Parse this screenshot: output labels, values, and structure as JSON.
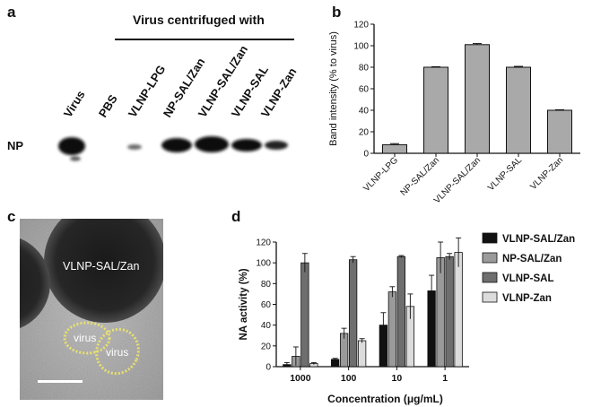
{
  "panel_a": {
    "label": "a",
    "header": "Virus centrifuged with",
    "lanes": [
      "Virus",
      "PBS",
      "VLNP-LPG",
      "NP-SAL/Zan",
      "VLNP-SAL/Zan",
      "VLNP-SAL",
      "VLNP-Zan"
    ],
    "row_label": "NP"
  },
  "panel_c": {
    "label": "c",
    "particle_label": "VLNP-SAL/Zan",
    "virus_label_1": "virus",
    "virus_label_2": "virus"
  },
  "chart_data": [
    {
      "panel": "b",
      "type": "bar",
      "categories": [
        "VLNP-LPG",
        "NP-SAL/Zan",
        "VLNP-SAL/Zan",
        "VLNP-SAL",
        "VLNP-Zan"
      ],
      "values": [
        8,
        80,
        101,
        80,
        40
      ],
      "errors": [
        1,
        0.5,
        1,
        0.8,
        0.5
      ],
      "ylabel": "Band intensity (% to virus)",
      "xlabel": "",
      "ylim": [
        0,
        120
      ],
      "yticks": [
        0,
        20,
        40,
        60,
        80,
        100,
        120
      ],
      "bar_color": "#a9a9a9",
      "grid": false
    },
    {
      "panel": "d",
      "type": "bar",
      "categories": [
        "1000",
        "100",
        "10",
        "1"
      ],
      "series": [
        {
          "name": "VLNP-SAL/Zan",
          "values": [
            2,
            7,
            40,
            73
          ],
          "errors": [
            2,
            1,
            12,
            15
          ],
          "color": "#111111"
        },
        {
          "name": "NP-SAL/Zan",
          "values": [
            10,
            32,
            72,
            105
          ],
          "errors": [
            9,
            5,
            5,
            15
          ],
          "color": "#9a9a9a"
        },
        {
          "name": "VLNP-SAL",
          "values": [
            100,
            103,
            106,
            106
          ],
          "errors": [
            9,
            3,
            1,
            3
          ],
          "color": "#6e6e6e"
        },
        {
          "name": "VLNP-Zan",
          "values": [
            3,
            25,
            58,
            110
          ],
          "errors": [
            1,
            2,
            12,
            14
          ],
          "color": "#dcdcdc"
        }
      ],
      "xlabel": "Concentration (μg/mL)",
      "ylabel": "NA activity (%)",
      "ylim": [
        0,
        120
      ],
      "yticks": [
        0,
        20,
        40,
        60,
        80,
        100,
        120
      ],
      "legend": "right",
      "grid": false
    }
  ]
}
